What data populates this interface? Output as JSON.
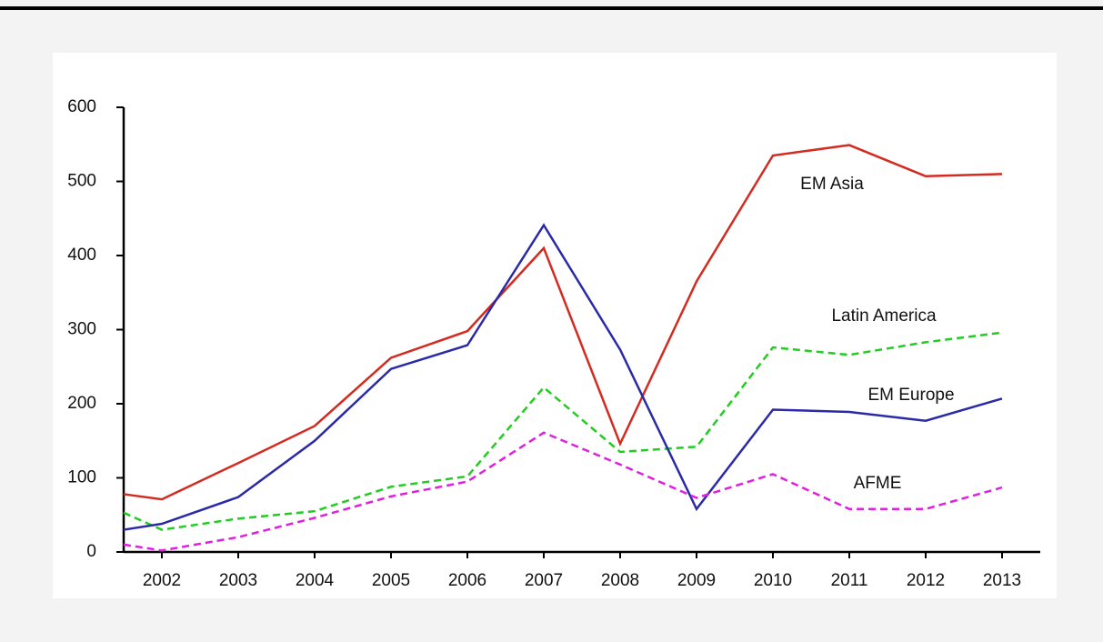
{
  "chart_data": {
    "type": "line",
    "x": [
      2001.5,
      2002,
      2003,
      2004,
      2005,
      2006,
      2007,
      2008,
      2009,
      2010,
      2011,
      2012,
      2013
    ],
    "xlim": [
      2001.5,
      2013.5
    ],
    "xticks": [
      2002,
      2003,
      2004,
      2005,
      2006,
      2007,
      2008,
      2009,
      2010,
      2011,
      2012,
      2013
    ],
    "ylim": [
      0,
      600
    ],
    "yticks": [
      0,
      100,
      200,
      300,
      400,
      500,
      600
    ],
    "series": [
      {
        "name": "EM Asia",
        "color": "#d42a20",
        "dashed": false,
        "values": [
          78,
          71,
          120,
          170,
          262,
          298,
          410,
          146,
          365,
          535,
          549,
          507,
          510
        ]
      },
      {
        "name": "Latin America",
        "color": "#22cc22",
        "dashed": true,
        "values": [
          53,
          30,
          45,
          55,
          88,
          102,
          222,
          135,
          142,
          276,
          266,
          283,
          296
        ]
      },
      {
        "name": "EM Europe",
        "color": "#2a2aa8",
        "dashed": false,
        "values": [
          30,
          38,
          74,
          150,
          247,
          279,
          441,
          273,
          58,
          192,
          189,
          177,
          207
        ]
      },
      {
        "name": "AFME",
        "color": "#e020e0",
        "dashed": true,
        "values": [
          10,
          2,
          20,
          46,
          75,
          95,
          161,
          118,
          73,
          105,
          58,
          58,
          87
        ]
      }
    ]
  }
}
